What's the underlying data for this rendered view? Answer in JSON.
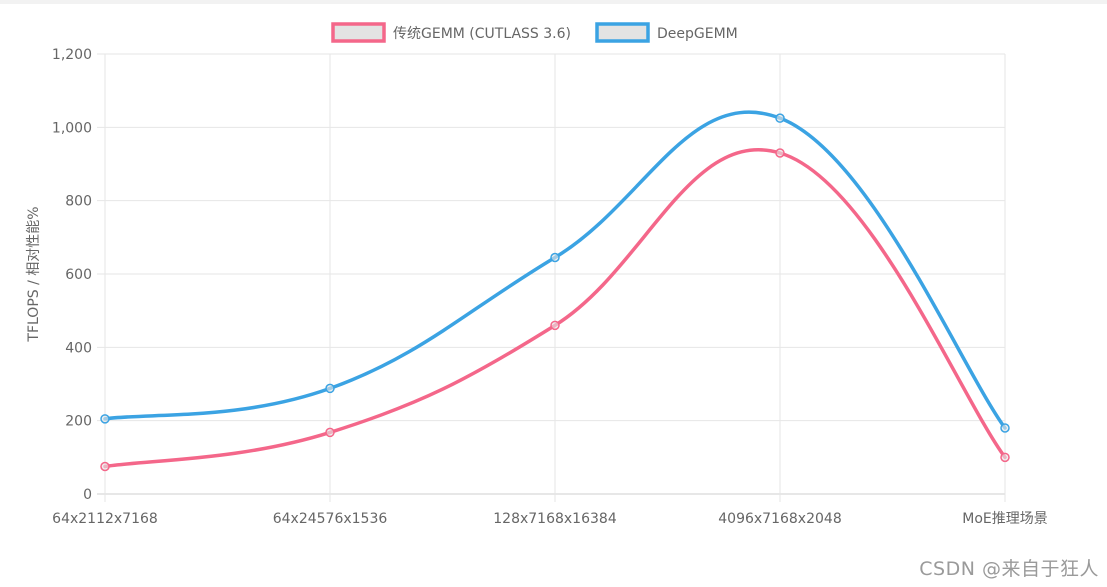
{
  "chart_data": {
    "type": "line",
    "categories": [
      "64x2112x7168",
      "64x24576x1536",
      "128x7168x16384",
      "4096x7168x2048",
      "MoE推理场景"
    ],
    "series": [
      {
        "name": "传统GEMM (CUTLASS 3.6)",
        "values": [
          75,
          168,
          460,
          930,
          100
        ],
        "color": "#f4678a"
      },
      {
        "name": "DeepGEMM",
        "values": [
          205,
          288,
          645,
          1025,
          180
        ],
        "color": "#3ba3e3"
      }
    ],
    "ylabel": "TFLOPS / 相对性能%",
    "ylim": [
      0,
      1200
    ],
    "yticks": [
      "0",
      "200",
      "400",
      "600",
      "800",
      "1,000",
      "1,200"
    ],
    "grid": true,
    "legend_position": "top-center"
  },
  "watermark": "CSDN @来自于狂人"
}
